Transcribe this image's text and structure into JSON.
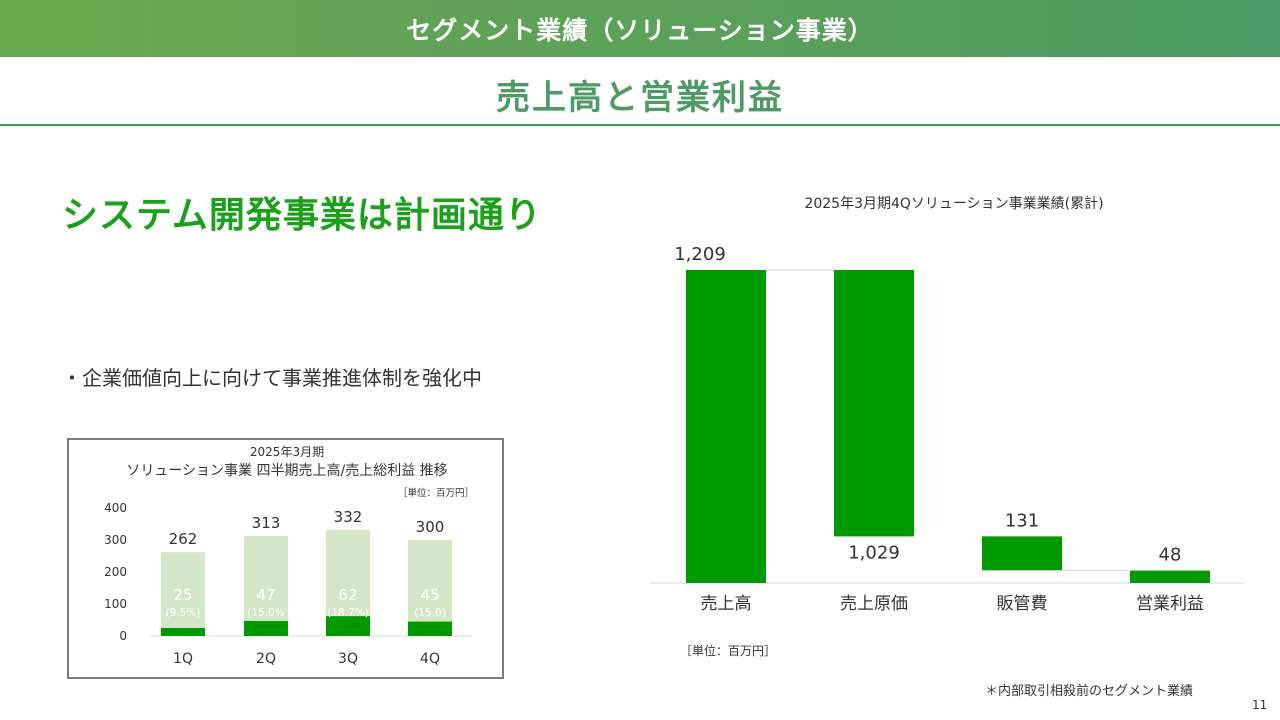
{
  "header": {
    "section_title": "セグメント業績（ソリューション事業）",
    "page_title": "売上高と営業利益"
  },
  "main": {
    "headline": "システム開発事業は計画通り",
    "bullet": "・企業価値向上に向けて事業推進体制を強化中"
  },
  "footer": {
    "note": "＊内部取引相殺前のセグメント業績",
    "page_number": "11"
  },
  "colors": {
    "accent_green": "#009900",
    "light_green": "#d4e6c8",
    "header_green": "#4e9a64"
  },
  "chart_data": [
    {
      "type": "bar",
      "title": "2025年3月期",
      "subtitle": "ソリューション事業 四半期売上高/売上総利益 推移",
      "unit_label": "［単位：百万円］",
      "categories": [
        "1Q",
        "2Q",
        "3Q",
        "4Q"
      ],
      "series": [
        {
          "values": [
            262,
            313,
            332,
            300
          ],
          "labels": [
            "262",
            "313",
            "332",
            "300"
          ]
        },
        {
          "values": [
            25,
            47,
            62,
            45
          ],
          "labels": [
            "25",
            "47",
            "62",
            "45"
          ],
          "rate_labels": [
            "(9.5%)",
            "(15.0%",
            "(18.7%)",
            "(15.0)"
          ]
        }
      ],
      "yticks": [
        "0",
        "100",
        "200",
        "300",
        "400"
      ],
      "ylim": [
        0,
        400
      ],
      "grid": false
    },
    {
      "type": "bar",
      "subtype": "waterfall",
      "title": "2025年3月期4Qソリューション事業業績(累計)",
      "unit_label": "［単位：百万円］",
      "categories": [
        "売上高",
        "売上原価",
        "販管費",
        "営業利益"
      ],
      "values": [
        1209,
        1029,
        131,
        48
      ],
      "labels": [
        "1,209",
        "1,029",
        "131",
        "48"
      ],
      "grid": false
    }
  ]
}
